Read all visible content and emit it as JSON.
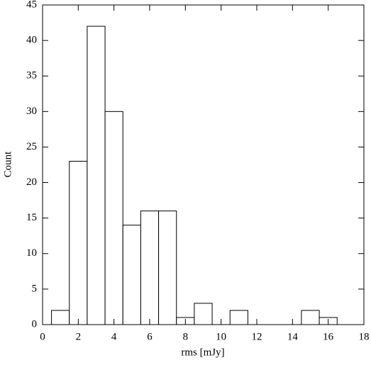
{
  "chart_data": {
    "type": "histogram",
    "xlabel": "rms [mJy]",
    "ylabel": "Count",
    "bins": [
      0.5,
      1.5,
      2.5,
      3.5,
      4.5,
      5.5,
      6.5,
      7.5,
      8.5,
      9.5,
      10.5,
      11.5,
      12.5,
      13.5,
      14.5,
      15.5,
      16.5
    ],
    "counts": [
      2,
      23,
      42,
      30,
      14,
      16,
      16,
      1,
      3,
      0,
      2,
      0,
      0,
      0,
      2,
      1
    ],
    "color": "#ffffff",
    "edgecolor": "#000000",
    "xlim": [
      0,
      18
    ],
    "xticks": [
      0,
      2,
      4,
      6,
      8,
      10,
      12,
      14,
      16,
      18
    ],
    "ylim": [
      0,
      45
    ],
    "yticks": [
      0,
      5,
      10,
      15,
      20,
      25,
      30,
      35,
      40,
      45
    ]
  }
}
